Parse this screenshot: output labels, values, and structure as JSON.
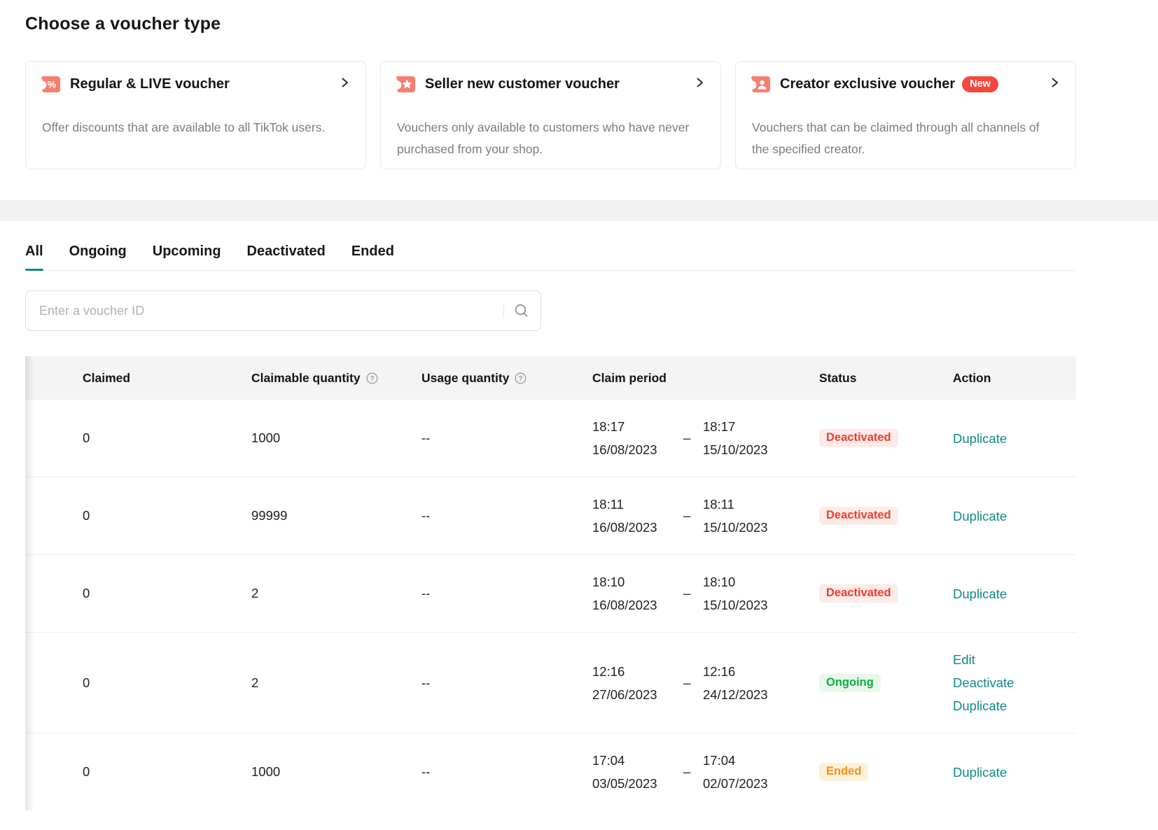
{
  "page": {
    "title": "Choose a voucher type"
  },
  "voucher_types": [
    {
      "title": "Regular & LIVE voucher",
      "description": "Offer discounts that are available to all TikTok users.",
      "icon": "percent-ticket-icon",
      "badge": null
    },
    {
      "title": "Seller new customer voucher",
      "description": "Vouchers only available to customers who have never purchased from your shop.",
      "icon": "star-ticket-icon",
      "badge": null
    },
    {
      "title": "Creator exclusive voucher",
      "description": "Vouchers that can be claimed through all channels of the specified creator.",
      "icon": "creator-ticket-icon",
      "badge": "New"
    }
  ],
  "tabs": [
    {
      "label": "All",
      "active": true
    },
    {
      "label": "Ongoing",
      "active": false
    },
    {
      "label": "Upcoming",
      "active": false
    },
    {
      "label": "Deactivated",
      "active": false
    },
    {
      "label": "Ended",
      "active": false
    }
  ],
  "search": {
    "placeholder": "Enter a voucher ID",
    "icon": "search-icon"
  },
  "table": {
    "columns": [
      {
        "label": "Claimed",
        "help": false
      },
      {
        "label": "Claimable quantity",
        "help": true
      },
      {
        "label": "Usage quantity",
        "help": true
      },
      {
        "label": "Claim period",
        "help": false
      },
      {
        "label": "Status",
        "help": false
      },
      {
        "label": "Action",
        "help": false
      }
    ],
    "rows": [
      {
        "claimed": "0",
        "claimable": "1000",
        "usage": "--",
        "period": {
          "start_time": "18:17",
          "start_date": "16/08/2023",
          "separator": "–",
          "end_time": "18:17",
          "end_date": "15/10/2023"
        },
        "status": "Deactivated",
        "actions": [
          "Duplicate"
        ]
      },
      {
        "claimed": "0",
        "claimable": "99999",
        "usage": "--",
        "period": {
          "start_time": "18:11",
          "start_date": "16/08/2023",
          "separator": "–",
          "end_time": "18:11",
          "end_date": "15/10/2023"
        },
        "status": "Deactivated",
        "actions": [
          "Duplicate"
        ]
      },
      {
        "claimed": "0",
        "claimable": "2",
        "usage": "--",
        "period": {
          "start_time": "18:10",
          "start_date": "16/08/2023",
          "separator": "–",
          "end_time": "18:10",
          "end_date": "15/10/2023"
        },
        "status": "Deactivated",
        "actions": [
          "Duplicate"
        ]
      },
      {
        "claimed": "0",
        "claimable": "2",
        "usage": "--",
        "period": {
          "start_time": "12:16",
          "start_date": "27/06/2023",
          "separator": "–",
          "end_time": "12:16",
          "end_date": "24/12/2023"
        },
        "status": "Ongoing",
        "actions": [
          "Edit",
          "Deactivate",
          "Duplicate"
        ]
      },
      {
        "claimed": "0",
        "claimable": "1000",
        "usage": "--",
        "period": {
          "start_time": "17:04",
          "start_date": "03/05/2023",
          "separator": "–",
          "end_time": "17:04",
          "end_date": "02/07/2023"
        },
        "status": "Ended",
        "actions": [
          "Duplicate"
        ]
      }
    ]
  },
  "colors": {
    "accent_teal": "#0E8A84",
    "brand_red": "#F87E70",
    "new_badge": "#F5473D",
    "card_header_tint": "#FBE9E7",
    "status": {
      "Deactivated": {
        "text": "#F23B2F",
        "bg": "#FDEBE8"
      },
      "Ongoing": {
        "text": "#0FAE3E",
        "bg": "#E8F7EB"
      },
      "Ended": {
        "text": "#F5920B",
        "bg": "#FDF0DB"
      }
    }
  }
}
